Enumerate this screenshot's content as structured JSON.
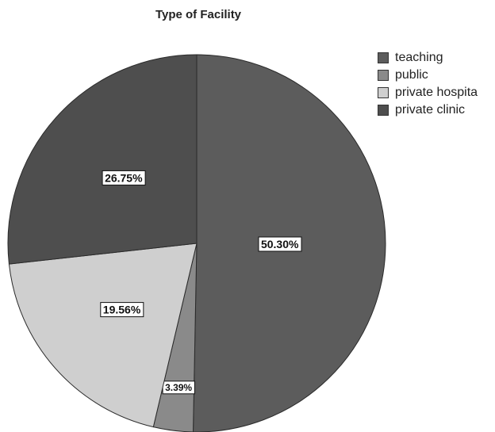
{
  "chart_data": {
    "type": "pie",
    "title": "Type of Facility",
    "legend_position": "top-right",
    "slices": [
      {
        "name": "teaching",
        "value": 50.3,
        "label": "50.30%",
        "color": "#5c5c5c"
      },
      {
        "name": "public",
        "value": 3.39,
        "label": "3.39%",
        "color": "#8a8a8a"
      },
      {
        "name": "private hospita",
        "value": 19.56,
        "label": "19.56%",
        "color": "#cfcfcf"
      },
      {
        "name": "private clinic",
        "value": 26.75,
        "label": "26.75%",
        "color": "#4e4e4e"
      }
    ]
  }
}
